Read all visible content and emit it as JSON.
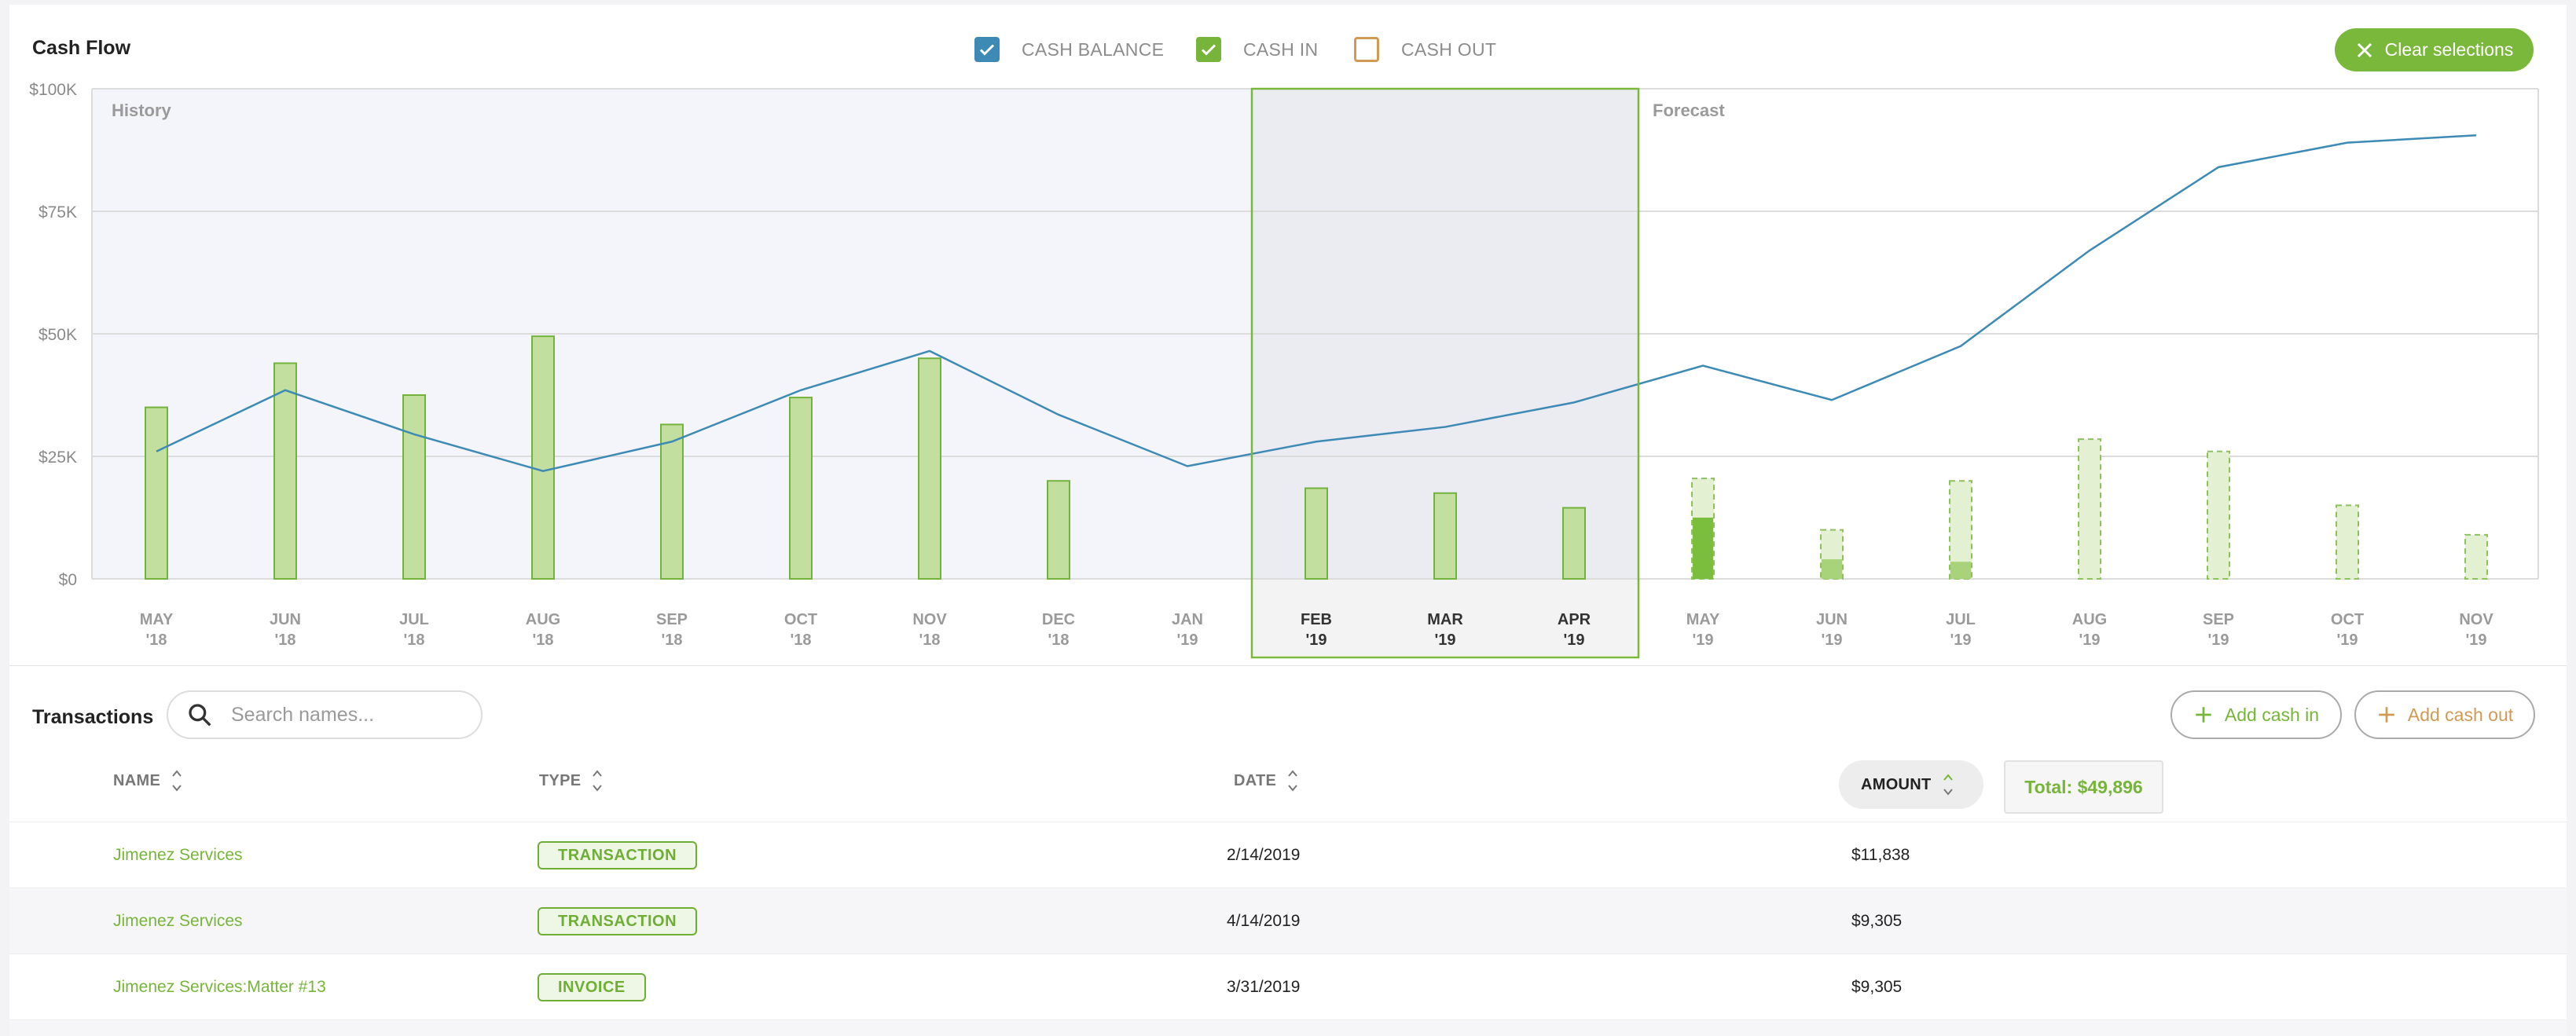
{
  "header": {
    "title": "Cash Flow",
    "legend": [
      {
        "label": "CASH BALANCE",
        "checked": true,
        "color": "#3d8ab5"
      },
      {
        "label": "CASH IN",
        "checked": true,
        "color": "#77b53a"
      },
      {
        "label": "CASH OUT",
        "checked": false,
        "color": "#d09a55"
      }
    ],
    "clear_label": "Clear selections"
  },
  "chart_data": {
    "type": "bar",
    "categories": [
      [
        "MAY",
        "'18"
      ],
      [
        "JUN",
        "'18"
      ],
      [
        "JUL",
        "'18"
      ],
      [
        "AUG",
        "'18"
      ],
      [
        "SEP",
        "'18"
      ],
      [
        "OCT",
        "'18"
      ],
      [
        "NOV",
        "'18"
      ],
      [
        "DEC",
        "'18"
      ],
      [
        "JAN",
        "'19"
      ],
      [
        "FEB",
        "'19"
      ],
      [
        "MAR",
        "'19"
      ],
      [
        "APR",
        "'19"
      ],
      [
        "MAY",
        "'19"
      ],
      [
        "JUN",
        "'19"
      ],
      [
        "JUL",
        "'19"
      ],
      [
        "AUG",
        "'19"
      ],
      [
        "SEP",
        "'19"
      ],
      [
        "OCT",
        "'19"
      ],
      [
        "NOV",
        "'19"
      ]
    ],
    "y_ticks": [
      "$0",
      "$25K",
      "$50K",
      "$75K",
      "$100K"
    ],
    "ylim": [
      0,
      100000
    ],
    "regions": {
      "history_label": "History",
      "forecast_label": "Forecast",
      "forecast_start_index": 12
    },
    "selected_range": [
      9,
      11
    ],
    "series": [
      {
        "name": "CASH IN",
        "type": "bar",
        "values": [
          35000,
          44000,
          37500,
          49500,
          31500,
          37000,
          45000,
          20000,
          0,
          18500,
          17500,
          14500,
          20500,
          10000,
          20000,
          28500,
          26000,
          15000,
          9000
        ]
      },
      {
        "name": "CASH IN (actual in forecast)",
        "type": "bar",
        "values": [
          0,
          0,
          0,
          0,
          0,
          0,
          0,
          0,
          0,
          0,
          0,
          0,
          12500,
          4000,
          3500,
          0,
          0,
          0,
          0
        ]
      },
      {
        "name": "CASH BALANCE",
        "type": "line",
        "values": [
          26000,
          38500,
          29500,
          22000,
          28000,
          38500,
          46500,
          33500,
          23000,
          28000,
          31000,
          36000,
          43500,
          36500,
          47500,
          67000,
          84000,
          89000,
          90500
        ]
      }
    ]
  },
  "transactions": {
    "title": "Transactions",
    "search_placeholder": "Search names...",
    "add_in_label": "Add cash in",
    "add_out_label": "Add cash out",
    "columns": {
      "name": "NAME",
      "type": "TYPE",
      "date": "DATE",
      "amount": "AMOUNT"
    },
    "total": "Total: $49,896",
    "rows": [
      {
        "name": "Jimenez Services",
        "type": "TRANSACTION",
        "date": "2/14/2019",
        "amount": "$11,838"
      },
      {
        "name": "Jimenez Services",
        "type": "TRANSACTION",
        "date": "4/14/2019",
        "amount": "$9,305"
      },
      {
        "name": "Jimenez Services:Matter #13",
        "type": "INVOICE",
        "date": "3/31/2019",
        "amount": "$9,305"
      }
    ]
  }
}
